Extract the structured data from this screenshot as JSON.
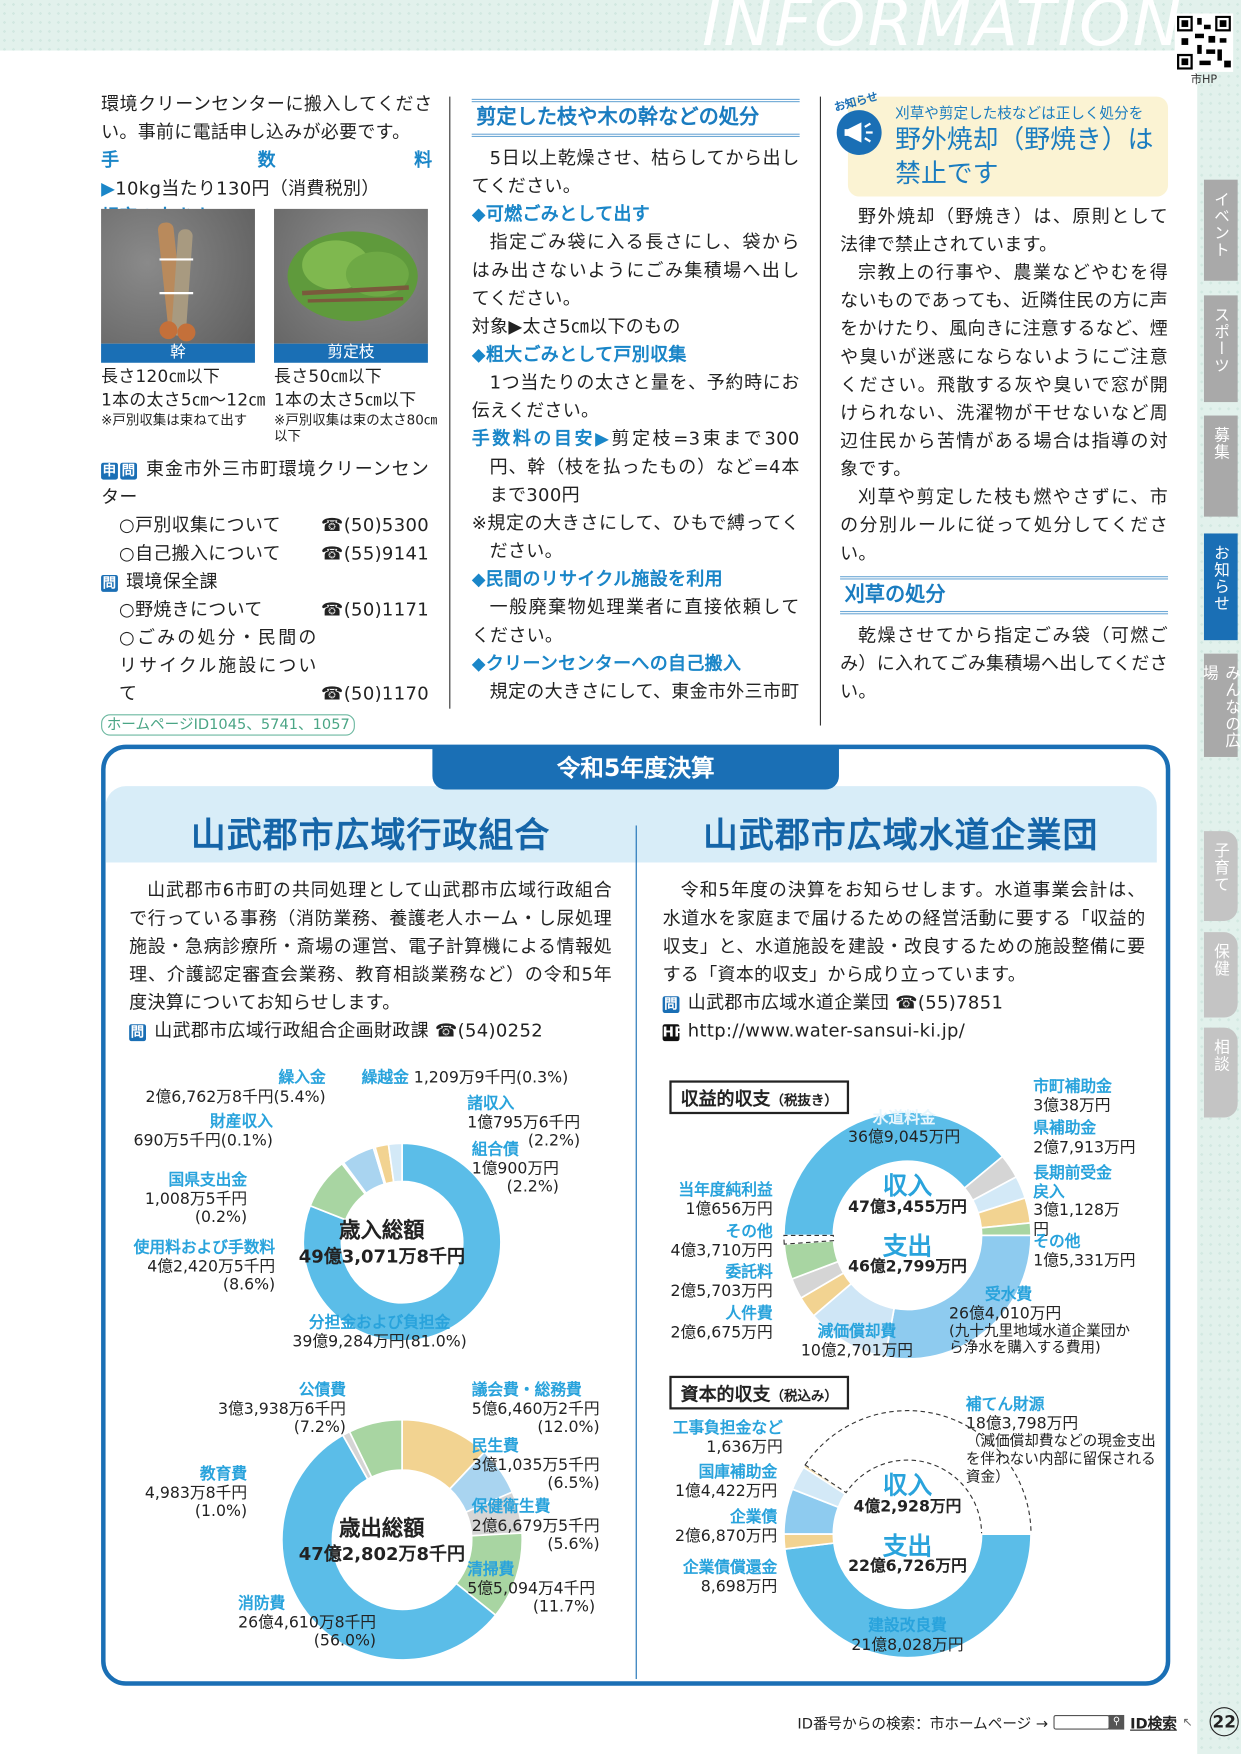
{
  "header": {
    "title": "INFORMATION",
    "qr_label": "市HP"
  },
  "tabs": [
    {
      "label": "イベント",
      "active": false
    },
    {
      "label": "スポーツ",
      "active": false
    },
    {
      "label": "募集",
      "active": false
    },
    {
      "label": "お知らせ",
      "active": true
    },
    {
      "label": "みんなの広場",
      "active": false
    },
    {
      "label": "子育て",
      "active": false
    },
    {
      "label": "保健",
      "active": false
    },
    {
      "label": "相談",
      "active": false
    }
  ],
  "col1": {
    "intro": "環境クリーンセンターに搬入してください。事前に電話申し込みが必要です。",
    "fee_label": "手数料▶",
    "fee_text": "10kg当たり130円（消費税別）",
    "size_label": "規定の大きさ▼",
    "photos": [
      {
        "caption": "幹",
        "lines": [
          "長さ120㎝以下",
          "1本の太さ5㎝～12㎝"
        ],
        "note": "※戸別収集は束ねて出す"
      },
      {
        "caption": "剪定枝",
        "lines": [
          "長さ50㎝以下",
          "1本の太さ5㎝以下"
        ],
        "note": "※戸別収集は束の太さ80㎝以下"
      }
    ],
    "contact1": {
      "badges": [
        "申",
        "問"
      ],
      "org": "東金市外三市町環境クリーンセンター",
      "items": [
        {
          "label": "○戸別収集について",
          "tel": "☎(50)5300"
        },
        {
          "label": "○自己搬入について",
          "tel": "☎(55)9141"
        }
      ]
    },
    "contact2": {
      "badges": [
        "問"
      ],
      "org": "環境保全課",
      "items": [
        {
          "label": "○野焼きについて",
          "tel": "☎(50)1171"
        },
        {
          "label": "○ごみの処分・民間のリサイクル施設について",
          "tel": "☎(50)1170"
        }
      ]
    },
    "hp_ids": "ホームページID1045、5741、1057"
  },
  "col2": {
    "heading": "剪定した枝や木の幹などの処分",
    "p1": "5日以上乾燥させ、枯らしてから出してください。",
    "h1": "◆可燃ごみとして出す",
    "p2": "指定ごみ袋に入る長さにし、袋からはみ出さないようにごみ集積場へ出してください。",
    "target": "対象▶太さ5㎝以下のもの",
    "h2": "◆粗大ごみとして戸別収集",
    "p3": "1つ当たりの太さと量を、予約時にお伝えください。",
    "fee_label": "手数料の目安▶",
    "fee_text": "剪定枝=3束まで300円、幹（枝を払ったもの）など=4本まで300円",
    "note": "※規定の大きさにして、ひもで縛ってください。",
    "h3": "◆民間のリサイクル施設を利用",
    "p4": "一般廃棄物処理業者に直接依頼してください。",
    "h4": "◆クリーンセンターへの自己搬入",
    "p5": "規定の大きさにして、東金市外三市町"
  },
  "col3": {
    "badge": "お知らせ",
    "icon": "megaphone-icon",
    "subtitle": "刈草や剪定した枝などは正しく処分を",
    "title": "野外焼却（野焼き）は禁止です",
    "p1": "野外焼却（野焼き）は、原則として法律で禁止されています。",
    "p2": "宗教上の行事や、農業などやむを得ないものであっても、近隣住民の方に声をかけたり、風向きに注意するなど、煙や臭いが迷惑にならないようにご注意ください。飛散する灰や臭いで窓が開けられない、洗濯物が干せないなど周辺住民から苦情がある場合は指導の対象です。",
    "p3": "刈草や剪定した枝も燃やさずに、市の分別ルールに従って処分してください。",
    "heading2": "刈草の処分",
    "p4": "乾燥させてから指定ごみ袋（可燃ごみ）に入れてごみ集積場へ出してください。"
  },
  "budget": {
    "tab": "令和5年度決算",
    "left": {
      "title": "山武郡市広域行政組合",
      "body": "山武郡市6市町の共同処理として山武郡市広域行政組合で行っている事務（消防業務、養護老人ホーム・し尿処理施設・急病診療所・斎場の運営、電子計算機による情報処理、介護認定審査会業務、教育相談業務など）の令和5年度決算についてお知らせします。",
      "contact_badge": "問",
      "contact": "山武郡市広域行政組合企画財政課 ☎(54)0252"
    },
    "right": {
      "title": "山武郡市広域水道企業団",
      "body": "令和5年度の決算をお知らせします。水道事業会計は、水道水を家庭まで届けるための経営活動に要する「収益的収支」と、水道施設を建設・改良するための施設整備に要する「資本的収支」から成り立っています。",
      "contact_badge": "問",
      "contact": "山武郡市広域水道企業団 ☎(55)7851",
      "hp_badge": "HP",
      "url": "http://www.water-sansui-ki.jp/"
    }
  },
  "chart_data": [
    {
      "type": "pie",
      "title": "歳入総額",
      "total": "49億3,071万8千円",
      "slices": [
        {
          "name": "分担金および負担金",
          "amount": "39億9,284万円",
          "value": 81.0,
          "pct_text": "(81.0%)",
          "color": "#5bbde8"
        },
        {
          "name": "使用料および手数料",
          "amount": "4億2,420万5千円",
          "value": 8.6,
          "pct_text": "(8.6%)",
          "color": "#a8d5a2"
        },
        {
          "name": "国県支出金",
          "amount": "1,008万5千円",
          "value": 0.2,
          "pct_text": "(0.2%)",
          "color": "#5bbde8"
        },
        {
          "name": "財産収入",
          "amount": "690万5千円",
          "value": 0.1,
          "pct_text": "(0.1%)",
          "color": "#d5d5d5"
        },
        {
          "name": "繰入金",
          "amount": "2億6,762万8千円",
          "value": 5.4,
          "pct_text": "(5.4%)",
          "color": "#a9d4f0"
        },
        {
          "name": "繰越金",
          "amount": "1,209万9千円",
          "value": 0.3,
          "pct_text": "(0.3%)",
          "color": "#d5d5d5"
        },
        {
          "name": "諸収入",
          "amount": "1億795万6千円",
          "value": 2.2,
          "pct_text": "(2.2%)",
          "color": "#f2d391"
        },
        {
          "name": "組合債",
          "amount": "1億900万円",
          "value": 2.2,
          "pct_text": "(2.2%)",
          "color": "#d3e9f7"
        }
      ]
    },
    {
      "type": "pie",
      "title": "歳出総額",
      "total": "47億2,802万8千円",
      "slices": [
        {
          "name": "議会費・総務費",
          "amount": "5億6,460万2千円",
          "value": 12.0,
          "pct_text": "(12.0%)",
          "color": "#f2d391"
        },
        {
          "name": "民生費",
          "amount": "3億1,035万5千円",
          "value": 6.5,
          "pct_text": "(6.5%)",
          "color": "#a9d4f0"
        },
        {
          "name": "保健衛生費",
          "amount": "2億6,679万5千円",
          "value": 5.6,
          "pct_text": "(5.6%)",
          "color": "#d5d5d5"
        },
        {
          "name": "清掃費",
          "amount": "5億5,094万4千円",
          "value": 11.7,
          "pct_text": "(11.7%)",
          "color": "#a8d5a2"
        },
        {
          "name": "消防費",
          "amount": "26億4,610万8千円",
          "value": 56.0,
          "pct_text": "(56.0%)",
          "color": "#5bbde8"
        },
        {
          "name": "教育費",
          "amount": "4,983万8千円",
          "value": 1.0,
          "pct_text": "(1.0%)",
          "color": "#d5d5d5"
        },
        {
          "name": "公債費",
          "amount": "3億3,938万6千円",
          "value": 7.2,
          "pct_text": "(7.2%)",
          "color": "#a8d5a2"
        }
      ]
    },
    {
      "type": "pie",
      "title": "収益的収支",
      "note": "（税抜き）",
      "unit": "万円",
      "income": {
        "label": "収入",
        "total": "47億3,455万円",
        "slices": [
          {
            "name": "水道料金",
            "amount": "36億9,045万円",
            "value": 369045,
            "color": "#5bbde8"
          },
          {
            "name": "市町補助金",
            "amount": "3億38万円",
            "value": 30038,
            "color": "#d5d5d5"
          },
          {
            "name": "県補助金",
            "amount": "2億7,913万円",
            "value": 27913,
            "color": "#d3e9f7"
          },
          {
            "name": "長期前受金戻入",
            "amount": "3億1,128万円",
            "value": 31128,
            "color": "#f2d391"
          },
          {
            "name": "その他",
            "amount": "1億5,331万円",
            "value": 15331,
            "color": "#a8d5a2"
          }
        ]
      },
      "expense": {
        "label": "支出",
        "total": "46億2,799万円",
        "slices": [
          {
            "name": "受水費",
            "amount": "26億4,010万円",
            "value": 264010,
            "color": "#8ecbef",
            "note": "(九十九里地域水道企業団から浄水を購入する費用)"
          },
          {
            "name": "減価償却費",
            "amount": "10億2,701万円",
            "value": 102701,
            "color": "#cfe6f6"
          },
          {
            "name": "人件費",
            "amount": "2億6,675万円",
            "value": 26675,
            "color": "#f2d391"
          },
          {
            "name": "委託料",
            "amount": "2億5,703万円",
            "value": 25703,
            "color": "#d5d5d5"
          },
          {
            "name": "その他",
            "amount": "4億3,710万円",
            "value": 43710,
            "color": "#a8d5a2"
          },
          {
            "name": "当年度純利益",
            "amount": "1億656万円",
            "value": 10656,
            "color": "#ffffff",
            "style": "dashed"
          }
        ]
      }
    },
    {
      "type": "pie",
      "title": "資本的収支",
      "note": "（税込み）",
      "unit": "万円",
      "income": {
        "label": "収入",
        "total": "4億2,928万円",
        "slices": [
          {
            "name": "企業債",
            "amount": "2億6,870万円",
            "value": 26870,
            "color": "#8ecbef"
          },
          {
            "name": "国庫補助金",
            "amount": "1億4,422万円",
            "value": 14422,
            "color": "#d3e9f7"
          },
          {
            "name": "工事負担金など",
            "amount": "1,636万円",
            "value": 1636,
            "color": "#f2d391"
          },
          {
            "name": "補てん財源",
            "amount": "18億3,798万円",
            "value": 183798,
            "color": "#ffffff",
            "style": "dashed",
            "note": "（減価償却費などの現金支出を伴わない内部に留保される資金）"
          }
        ]
      },
      "expense": {
        "label": "支出",
        "total": "22億6,726万円",
        "slices": [
          {
            "name": "建設改良費",
            "amount": "21億8,028万円",
            "value": 218028,
            "color": "#5bbde8"
          },
          {
            "name": "企業債償還金",
            "amount": "8,698万円",
            "value": 8698,
            "color": "#f2d391"
          }
        ]
      }
    }
  ],
  "footer": {
    "text": "ID番号からの検索：市ホームページ →",
    "search_icon": "search-icon",
    "id_search": "ID検索",
    "page": "22"
  }
}
